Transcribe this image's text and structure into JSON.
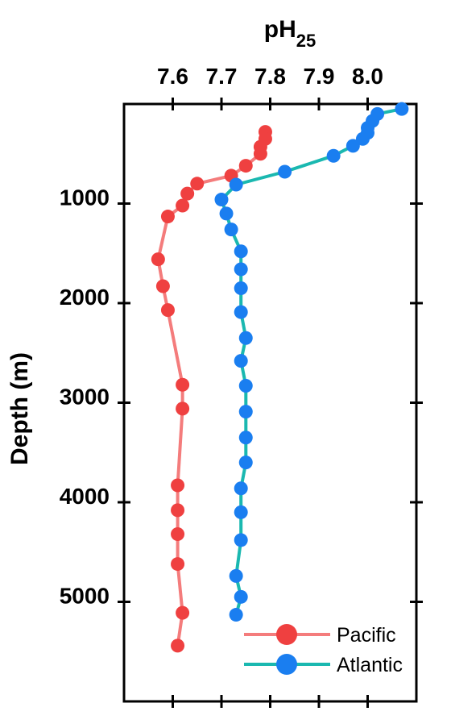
{
  "chart_data": {
    "type": "line",
    "title": "",
    "xlabel": "pH",
    "xlabel_sub": "25",
    "ylabel": "Depth (m)",
    "xlim": [
      7.5,
      8.1
    ],
    "ylim": [
      6000,
      0
    ],
    "x_axis_position": "top",
    "x_ticks": [
      7.6,
      7.7,
      7.8,
      7.9,
      8.0
    ],
    "x_tick_labels": [
      "7.6",
      "7.7",
      "7.8",
      "7.9",
      "8.0"
    ],
    "y_ticks": [
      1000,
      2000,
      3000,
      4000,
      5000
    ],
    "y_tick_labels": [
      "1000",
      "2000",
      "3000",
      "4000",
      "5000"
    ],
    "grid": false,
    "legend_position": "bottom-right",
    "series": [
      {
        "name": "Pacific",
        "line_color": "#f47c7c",
        "marker_color": "#ef4040",
        "points": [
          [
            7.79,
            280
          ],
          [
            7.79,
            350
          ],
          [
            7.78,
            430
          ],
          [
            7.78,
            500
          ],
          [
            7.75,
            620
          ],
          [
            7.72,
            720
          ],
          [
            7.65,
            800
          ],
          [
            7.63,
            900
          ],
          [
            7.62,
            1020
          ],
          [
            7.59,
            1130
          ],
          [
            7.57,
            1560
          ],
          [
            7.58,
            1830
          ],
          [
            7.59,
            2070
          ],
          [
            7.62,
            2820
          ],
          [
            7.62,
            3060
          ],
          [
            7.61,
            3830
          ],
          [
            7.61,
            4080
          ],
          [
            7.61,
            4320
          ],
          [
            7.61,
            4620
          ],
          [
            7.62,
            5110
          ],
          [
            7.61,
            5440
          ]
        ]
      },
      {
        "name": "Atlantic",
        "line_color": "#1ab8b0",
        "marker_color": "#1a7ef0",
        "points": [
          [
            8.07,
            50
          ],
          [
            8.02,
            100
          ],
          [
            8.01,
            170
          ],
          [
            8.0,
            240
          ],
          [
            8.0,
            290
          ],
          [
            7.99,
            350
          ],
          [
            7.97,
            420
          ],
          [
            7.93,
            520
          ],
          [
            7.83,
            680
          ],
          [
            7.73,
            810
          ],
          [
            7.7,
            960
          ],
          [
            7.71,
            1100
          ],
          [
            7.72,
            1260
          ],
          [
            7.74,
            1480
          ],
          [
            7.74,
            1660
          ],
          [
            7.74,
            1850
          ],
          [
            7.74,
            2090
          ],
          [
            7.75,
            2350
          ],
          [
            7.74,
            2580
          ],
          [
            7.75,
            2830
          ],
          [
            7.75,
            3090
          ],
          [
            7.75,
            3350
          ],
          [
            7.75,
            3600
          ],
          [
            7.74,
            3860
          ],
          [
            7.74,
            4100
          ],
          [
            7.74,
            4380
          ],
          [
            7.73,
            4740
          ],
          [
            7.74,
            4950
          ],
          [
            7.73,
            5130
          ]
        ]
      }
    ]
  }
}
